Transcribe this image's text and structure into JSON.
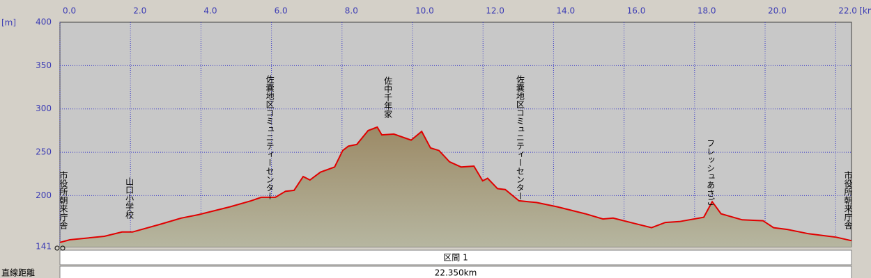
{
  "chart_data": {
    "type": "area",
    "x_unit": "[km]",
    "y_unit": "[m]",
    "xlim": [
      0,
      22.45
    ],
    "ylim": [
      141,
      400
    ],
    "xticks": [
      {
        "value": 0,
        "label": "0.0"
      },
      {
        "value": 2,
        "label": "2.0"
      },
      {
        "value": 4,
        "label": "4.0"
      },
      {
        "value": 6,
        "label": "6.0"
      },
      {
        "value": 8,
        "label": "8.0"
      },
      {
        "value": 10,
        "label": "10.0"
      },
      {
        "value": 12,
        "label": "12.0"
      },
      {
        "value": 14,
        "label": "14.0"
      },
      {
        "value": 16,
        "label": "16.0"
      },
      {
        "value": 18,
        "label": "18.0"
      },
      {
        "value": 20,
        "label": "20.0"
      },
      {
        "value": 22,
        "label": "22.0"
      }
    ],
    "yticks": [
      141,
      200,
      250,
      300,
      350,
      400
    ],
    "grid": true,
    "line_color": "#e00000",
    "fill_color": "#a89a78",
    "x": [
      0,
      0.28,
      1.26,
      1.76,
      2.06,
      2.85,
      3.44,
      3.93,
      4.82,
      5.42,
      5.71,
      6.11,
      6.4,
      6.64,
      6.9,
      7.09,
      7.39,
      7.79,
      8.02,
      8.18,
      8.42,
      8.74,
      9.0,
      9.13,
      9.47,
      9.96,
      10.26,
      10.51,
      10.75,
      11.05,
      11.38,
      11.74,
      11.99,
      12.13,
      12.41,
      12.63,
      13.02,
      13.52,
      14.11,
      14.9,
      15.4,
      15.69,
      16.28,
      16.78,
      17.17,
      17.57,
      18.26,
      18.5,
      18.75,
      19.35,
      19.94,
      20.24,
      20.63,
      21.23,
      21.62,
      22.02,
      22.45
    ],
    "values": [
      146,
      149,
      153,
      158,
      158,
      167,
      174,
      178,
      187,
      194,
      198,
      198,
      205,
      206,
      222,
      218,
      227,
      233,
      252,
      257,
      259,
      275,
      279,
      270,
      271,
      264,
      274,
      255,
      252,
      239,
      233,
      234,
      217,
      220,
      208,
      207,
      194,
      192,
      187,
      179,
      173,
      174,
      168,
      163,
      169,
      170,
      175,
      193,
      179,
      172,
      171,
      163,
      161,
      156,
      154,
      152,
      148
    ],
    "waypoints": [
      {
        "label": "市役所朝来庁舎",
        "x": 0.1
      },
      {
        "label": "山口小学校",
        "x": 1.97
      },
      {
        "label": "佐嚢地区コミュニティーセンター",
        "x": 5.95
      },
      {
        "label": "佐中千年家",
        "x": 9.3
      },
      {
        "label": "佐嚢地区コミュニティーセンター",
        "x": 13.05
      },
      {
        "label": "フレッシュあさご",
        "x": 18.45
      },
      {
        "label": "市役所朝来庁舎",
        "x": 22.35
      }
    ]
  },
  "table": {
    "section": "区間 1",
    "rows": [
      {
        "label": "直線距離",
        "value": "22.350km"
      }
    ]
  }
}
